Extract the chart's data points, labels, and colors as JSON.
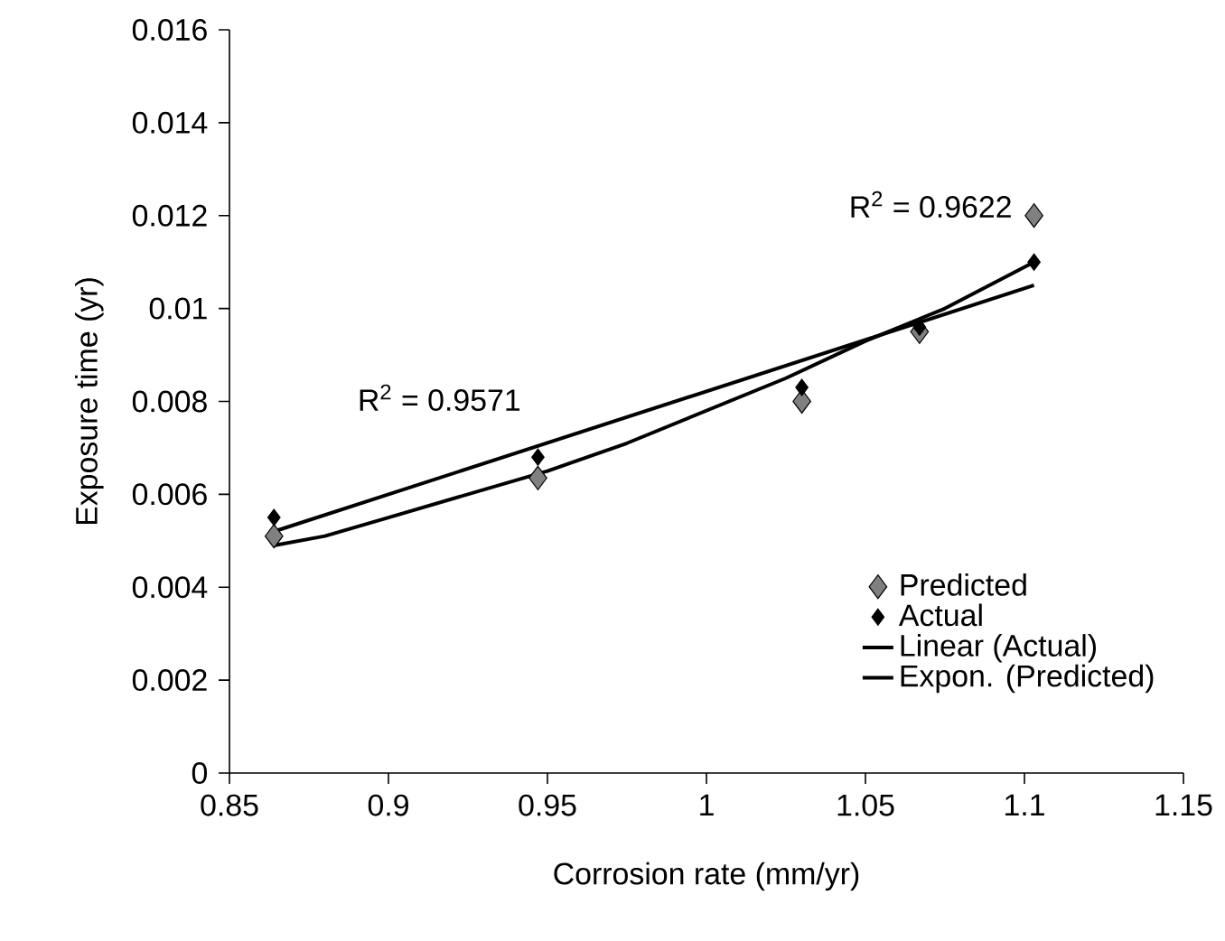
{
  "chart_data": {
    "type": "scatter",
    "xlabel": "Corrosion rate (mm/yr)",
    "ylabel": "Exposure time (yr)",
    "xlim": [
      0.85,
      1.15
    ],
    "xticks": [
      0.85,
      0.9,
      0.95,
      1,
      1.05,
      1.1,
      1.15
    ],
    "ylim": [
      0,
      0.016
    ],
    "yticks": [
      0,
      0.002,
      0.004,
      0.006,
      0.008,
      0.01,
      0.012,
      0.014,
      0.016
    ],
    "marker": "diamond",
    "line_style": "solid",
    "grid": false,
    "legend": "bottom right",
    "series": [
      {
        "name": "Predicted",
        "color": "#808080",
        "x": [
          0.864,
          0.947,
          1.03,
          1.067,
          1.103
        ],
        "values": [
          0.0051,
          0.00635,
          0.008,
          0.0095,
          0.012
        ]
      },
      {
        "name": "Actual",
        "color": "#000000",
        "x": [
          0.864,
          0.947,
          1.03,
          1.067,
          1.103
        ],
        "values": [
          0.0055,
          0.0068,
          0.0083,
          0.0096,
          0.011
        ]
      },
      {
        "name": "Linear (Actual)",
        "type": "line",
        "marker": "none",
        "color": "#000000",
        "x": [
          0.864,
          1.103
        ],
        "values": [
          0.0052,
          0.0105
        ]
      },
      {
        "name": "Expon. (Predicted)",
        "type": "line",
        "marker": "none",
        "color": "#000000",
        "x": [
          0.864,
          0.88,
          0.9,
          0.925,
          0.95,
          0.975,
          1.0,
          1.025,
          1.05,
          1.075,
          1.103
        ],
        "values": [
          0.0049,
          0.0051,
          0.0055,
          0.006,
          0.0065,
          0.0071,
          0.0078,
          0.0085,
          0.0093,
          0.01,
          0.011
        ]
      }
    ],
    "annotations": [
      "R$^{2}$ = 0.9571",
      "R$^{2}$ = 0.9622"
    ]
  }
}
